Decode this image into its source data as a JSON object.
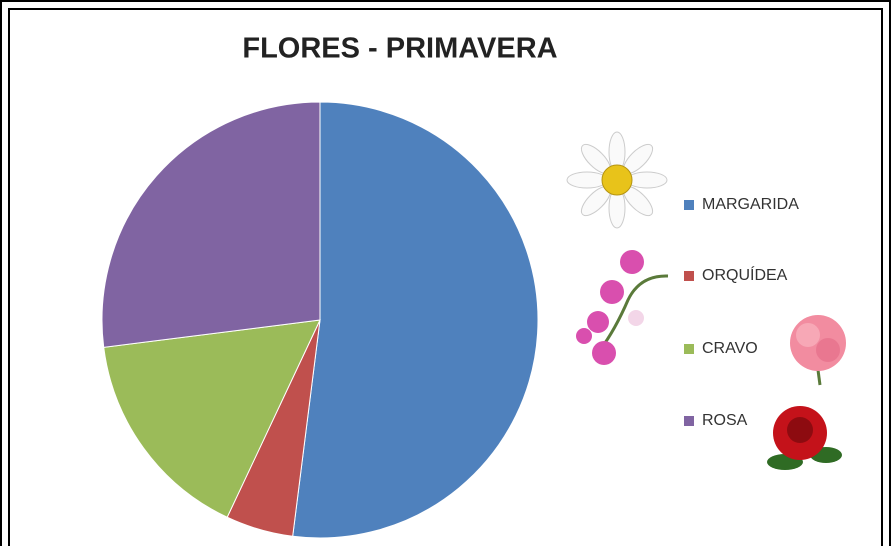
{
  "chart_data": {
    "type": "pie",
    "title": "FLORES - PRIMAVERA",
    "categories": [
      "MARGARIDA",
      "ORQUÍDEA",
      "CRAVO",
      "ROSA"
    ],
    "values": [
      52,
      5,
      16,
      27
    ],
    "colors": [
      "#4f81bd",
      "#c0504d",
      "#9bbb59",
      "#8064a2"
    ],
    "legend": "right"
  }
}
